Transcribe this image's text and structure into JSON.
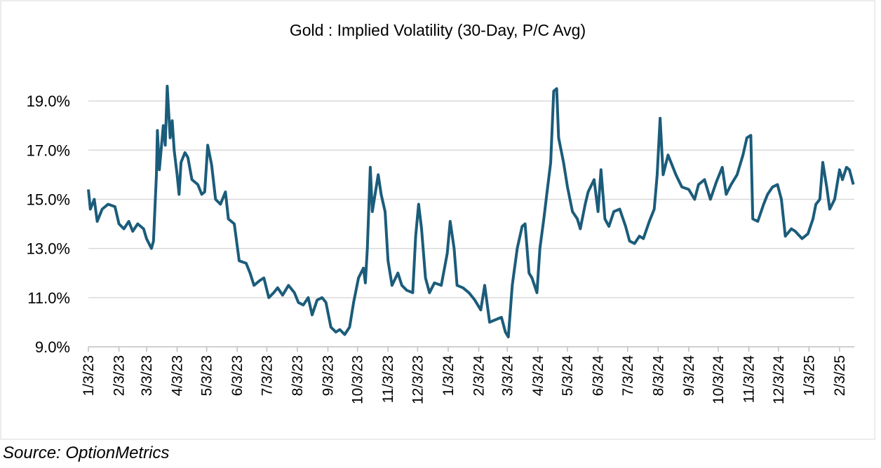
{
  "chart_data": {
    "type": "line",
    "title": "Gold : Implied Volatility (30-Day, P/C Avg)",
    "source": "Source: OptionMetrics",
    "color": "#1b5c7a",
    "grid": true,
    "ylim": [
      9,
      20
    ],
    "yticks": [
      {
        "value": 9,
        "label": "9.0%"
      },
      {
        "value": 11,
        "label": "11.0%"
      },
      {
        "value": 13,
        "label": "13.0%"
      },
      {
        "value": 15,
        "label": "15.0%"
      },
      {
        "value": 17,
        "label": "17.0%"
      },
      {
        "value": 19,
        "label": "19.0%"
      }
    ],
    "xlim": [
      "2023-01-03",
      "2025-02-18"
    ],
    "xticks": [
      {
        "value": "2023-01-03",
        "label": "1/3/23"
      },
      {
        "value": "2023-02-03",
        "label": "2/3/23"
      },
      {
        "value": "2023-03-03",
        "label": "3/3/23"
      },
      {
        "value": "2023-04-03",
        "label": "4/3/23"
      },
      {
        "value": "2023-05-03",
        "label": "5/3/23"
      },
      {
        "value": "2023-06-03",
        "label": "6/3/23"
      },
      {
        "value": "2023-07-03",
        "label": "7/3/23"
      },
      {
        "value": "2023-08-03",
        "label": "8/3/23"
      },
      {
        "value": "2023-09-03",
        "label": "9/3/23"
      },
      {
        "value": "2023-10-03",
        "label": "10/3/23"
      },
      {
        "value": "2023-11-03",
        "label": "11/3/23"
      },
      {
        "value": "2023-12-03",
        "label": "12/3/23"
      },
      {
        "value": "2024-01-03",
        "label": "1/3/24"
      },
      {
        "value": "2024-02-03",
        "label": "2/3/24"
      },
      {
        "value": "2024-03-03",
        "label": "3/3/24"
      },
      {
        "value": "2024-04-03",
        "label": "4/3/24"
      },
      {
        "value": "2024-05-03",
        "label": "5/3/24"
      },
      {
        "value": "2024-06-03",
        "label": "6/3/24"
      },
      {
        "value": "2024-07-03",
        "label": "7/3/24"
      },
      {
        "value": "2024-08-03",
        "label": "8/3/24"
      },
      {
        "value": "2024-09-03",
        "label": "9/3/24"
      },
      {
        "value": "2024-10-03",
        "label": "10/3/24"
      },
      {
        "value": "2024-11-03",
        "label": "11/3/24"
      },
      {
        "value": "2024-12-03",
        "label": "12/3/24"
      },
      {
        "value": "2025-01-03",
        "label": "1/3/25"
      },
      {
        "value": "2025-02-03",
        "label": "2/3/25"
      }
    ],
    "x": [
      "2023-01-03",
      "2023-01-05",
      "2023-01-09",
      "2023-01-12",
      "2023-01-17",
      "2023-01-23",
      "2023-01-30",
      "2023-02-03",
      "2023-02-08",
      "2023-02-13",
      "2023-02-17",
      "2023-02-22",
      "2023-02-28",
      "2023-03-03",
      "2023-03-08",
      "2023-03-10",
      "2023-03-13",
      "2023-03-14",
      "2023-03-16",
      "2023-03-20",
      "2023-03-22",
      "2023-03-24",
      "2023-03-27",
      "2023-03-29",
      "2023-03-31",
      "2023-04-03",
      "2023-04-05",
      "2023-04-07",
      "2023-04-11",
      "2023-04-14",
      "2023-04-18",
      "2023-04-24",
      "2023-04-28",
      "2023-05-01",
      "2023-05-03",
      "2023-05-04",
      "2023-05-08",
      "2023-05-12",
      "2023-05-17",
      "2023-05-22",
      "2023-05-25",
      "2023-05-31",
      "2023-06-05",
      "2023-06-12",
      "2023-06-16",
      "2023-06-20",
      "2023-06-26",
      "2023-06-30",
      "2023-07-05",
      "2023-07-10",
      "2023-07-14",
      "2023-07-19",
      "2023-07-25",
      "2023-07-31",
      "2023-08-04",
      "2023-08-09",
      "2023-08-14",
      "2023-08-18",
      "2023-08-23",
      "2023-08-28",
      "2023-09-01",
      "2023-09-06",
      "2023-09-11",
      "2023-09-15",
      "2023-09-20",
      "2023-09-25",
      "2023-09-29",
      "2023-10-04",
      "2023-10-09",
      "2023-10-11",
      "2023-10-13",
      "2023-10-16",
      "2023-10-18",
      "2023-10-20",
      "2023-10-24",
      "2023-10-27",
      "2023-10-31",
      "2023-11-03",
      "2023-11-07",
      "2023-11-13",
      "2023-11-17",
      "2023-11-22",
      "2023-11-28",
      "2023-12-01",
      "2023-12-04",
      "2023-12-07",
      "2023-12-11",
      "2023-12-15",
      "2023-12-20",
      "2023-12-27",
      "2024-01-02",
      "2024-01-05",
      "2024-01-09",
      "2024-01-12",
      "2024-01-18",
      "2024-01-24",
      "2024-01-30",
      "2024-02-05",
      "2024-02-09",
      "2024-02-14",
      "2024-02-20",
      "2024-02-26",
      "2024-03-01",
      "2024-03-04",
      "2024-03-08",
      "2024-03-13",
      "2024-03-18",
      "2024-03-21",
      "2024-03-25",
      "2024-03-28",
      "2024-04-02",
      "2024-04-05",
      "2024-04-09",
      "2024-04-12",
      "2024-04-16",
      "2024-04-19",
      "2024-04-22",
      "2024-04-24",
      "2024-04-29",
      "2024-05-03",
      "2024-05-08",
      "2024-05-13",
      "2024-05-16",
      "2024-05-21",
      "2024-05-24",
      "2024-05-30",
      "2024-06-03",
      "2024-06-06",
      "2024-06-10",
      "2024-06-14",
      "2024-06-19",
      "2024-06-25",
      "2024-07-01",
      "2024-07-05",
      "2024-07-10",
      "2024-07-15",
      "2024-07-19",
      "2024-07-25",
      "2024-07-30",
      "2024-08-02",
      "2024-08-05",
      "2024-08-08",
      "2024-08-13",
      "2024-08-16",
      "2024-08-21",
      "2024-08-27",
      "2024-09-03",
      "2024-09-09",
      "2024-09-13",
      "2024-09-19",
      "2024-09-25",
      "2024-10-01",
      "2024-10-07",
      "2024-10-11",
      "2024-10-16",
      "2024-10-22",
      "2024-10-28",
      "2024-11-01",
      "2024-11-05",
      "2024-11-07",
      "2024-11-12",
      "2024-11-18",
      "2024-11-22",
      "2024-11-27",
      "2024-12-02",
      "2024-12-06",
      "2024-12-10",
      "2024-12-16",
      "2024-12-20",
      "2024-12-27",
      "2025-01-02",
      "2025-01-07",
      "2025-01-10",
      "2025-01-14",
      "2025-01-17",
      "2025-01-21",
      "2025-01-24",
      "2025-01-29",
      "2025-02-03",
      "2025-02-06",
      "2025-02-10",
      "2025-02-13",
      "2025-02-17"
    ],
    "values": [
      15.4,
      14.6,
      15.0,
      14.1,
      14.6,
      14.8,
      14.7,
      14.0,
      13.8,
      14.1,
      13.7,
      14.0,
      13.8,
      13.4,
      13.0,
      13.3,
      16.0,
      17.8,
      16.2,
      18.0,
      17.2,
      19.6,
      17.5,
      18.2,
      17.0,
      16.0,
      15.2,
      16.5,
      16.9,
      16.7,
      15.8,
      15.6,
      15.2,
      15.3,
      16.5,
      17.2,
      16.4,
      15.0,
      14.8,
      15.3,
      14.2,
      14.0,
      12.5,
      12.4,
      12.0,
      11.5,
      11.7,
      11.8,
      11.0,
      11.2,
      11.4,
      11.1,
      11.5,
      11.2,
      10.8,
      10.7,
      11.0,
      10.3,
      10.9,
      11.0,
      10.8,
      9.8,
      9.6,
      9.7,
      9.5,
      9.8,
      10.8,
      11.8,
      12.2,
      11.6,
      13.0,
      16.3,
      14.5,
      15.0,
      16.0,
      15.2,
      14.5,
      12.5,
      11.5,
      12.0,
      11.5,
      11.3,
      11.2,
      13.5,
      14.8,
      13.8,
      11.8,
      11.2,
      11.6,
      11.5,
      12.8,
      14.1,
      13.0,
      11.5,
      11.4,
      11.2,
      10.9,
      10.5,
      11.5,
      10.0,
      10.1,
      10.2,
      9.6,
      9.4,
      11.5,
      13.0,
      13.9,
      14.0,
      12.0,
      11.8,
      11.2,
      13.0,
      14.2,
      15.2,
      16.5,
      19.4,
      19.5,
      17.5,
      16.5,
      15.5,
      14.5,
      14.2,
      13.8,
      14.8,
      15.3,
      15.8,
      14.5,
      16.2,
      14.2,
      13.9,
      14.5,
      14.6,
      13.9,
      13.3,
      13.2,
      13.5,
      13.4,
      14.1,
      14.6,
      16.0,
      18.3,
      16.0,
      16.8,
      16.5,
      16.0,
      15.5,
      15.4,
      15.0,
      15.6,
      15.8,
      15.0,
      15.7,
      16.3,
      15.2,
      15.6,
      16.0,
      16.8,
      17.5,
      17.6,
      14.2,
      14.1,
      14.8,
      15.2,
      15.5,
      15.6,
      15.0,
      13.5,
      13.8,
      13.7,
      13.4,
      13.6,
      14.2,
      14.8,
      15.0,
      16.5,
      15.5,
      14.6,
      15.0,
      16.2,
      15.8,
      16.3,
      16.2,
      15.6
    ]
  }
}
